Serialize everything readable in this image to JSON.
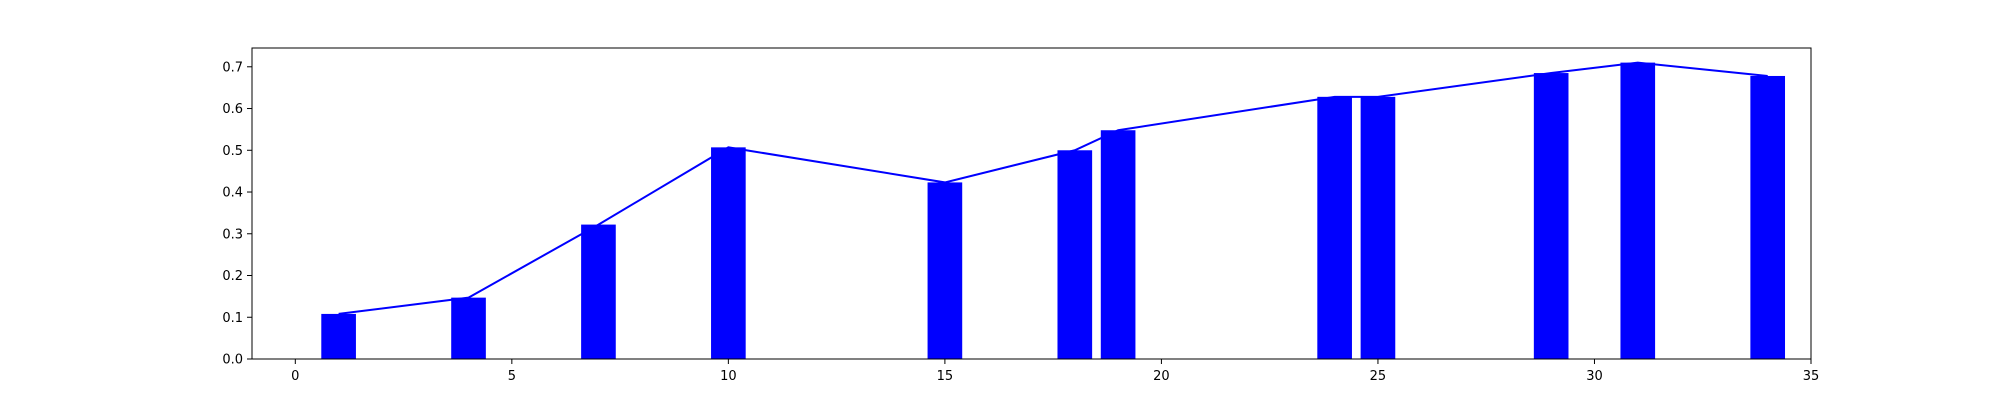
{
  "chart_data": {
    "type": "bar",
    "x": [
      1,
      4,
      7,
      10,
      15,
      18,
      19,
      24,
      25,
      29,
      31,
      34
    ],
    "values": [
      0.108,
      0.147,
      0.322,
      0.507,
      0.423,
      0.5,
      0.548,
      0.628,
      0.628,
      0.685,
      0.71,
      0.678
    ],
    "line_overlay": true,
    "title": "",
    "xlabel": "",
    "ylabel": "",
    "xlim": [
      -1,
      35
    ],
    "ylim": [
      0,
      0.745
    ],
    "xticks": [
      0,
      5,
      10,
      15,
      20,
      25,
      30,
      35
    ],
    "yticks": [
      0.0,
      0.1,
      0.2,
      0.3,
      0.4,
      0.5,
      0.6,
      0.7
    ],
    "xtick_labels": [
      "0",
      "5",
      "10",
      "15",
      "20",
      "25",
      "30",
      "35"
    ],
    "ytick_labels": [
      "0.0",
      "0.1",
      "0.2",
      "0.3",
      "0.4",
      "0.5",
      "0.6",
      "0.7"
    ],
    "grid": false,
    "legend": "none",
    "bar_color": "#0000ff",
    "line_color": "#0000ff"
  }
}
